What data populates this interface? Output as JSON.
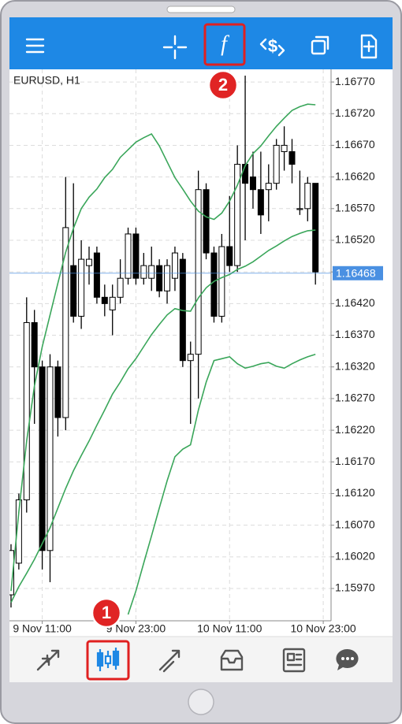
{
  "chart_data": {
    "type": "candlestick",
    "title": "EURUSD, H1",
    "open": [
      1.1596,
      1.1601,
      1.1611,
      1.1639,
      1.1632,
      1.1603,
      1.1632,
      1.1624,
      1.1648,
      1.164,
      1.1648,
      1.165,
      1.1643,
      1.1641,
      1.1643,
      1.1646,
      1.1653,
      1.1646,
      1.1646,
      1.1648,
      1.1644,
      1.1646,
      1.1649,
      1.1633,
      1.1634,
      1.166,
      1.165,
      1.164,
      1.1651,
      1.1648,
      1.1664,
      1.1662,
      1.166,
      1.166,
      1.1661,
      1.1666,
      1.1666,
      1.1657,
      1.1657,
      1.1661
    ],
    "high": [
      1.1604,
      1.1612,
      1.1643,
      1.1641,
      1.1633,
      1.1634,
      1.1633,
      1.1662,
      1.1661,
      1.1652,
      1.1651,
      1.1651,
      1.1645,
      1.1645,
      1.1649,
      1.1654,
      1.1654,
      1.165,
      1.1651,
      1.1649,
      1.1649,
      1.1651,
      1.165,
      1.1636,
      1.1663,
      1.1661,
      1.1651,
      1.1653,
      1.1659,
      1.1667,
      1.1678,
      1.1666,
      1.1666,
      1.1664,
      1.1668,
      1.167,
      1.1668,
      1.1663,
      1.1662,
      1.1661
    ],
    "low": [
      1.1594,
      1.16,
      1.1609,
      1.1623,
      1.16,
      1.1598,
      1.1621,
      1.1622,
      1.1639,
      1.1638,
      1.1645,
      1.1642,
      1.164,
      1.1637,
      1.1642,
      1.1645,
      1.1645,
      1.1645,
      1.1644,
      1.1643,
      1.1642,
      1.1644,
      1.1632,
      1.1623,
      1.1627,
      1.1649,
      1.1639,
      1.1639,
      1.1647,
      1.1647,
      1.1652,
      1.1657,
      1.1653,
      1.1655,
      1.166,
      1.1663,
      1.1661,
      1.1656,
      1.1655,
      1.1645
    ],
    "close": [
      1.1603,
      1.1611,
      1.1639,
      1.1632,
      1.1603,
      1.1632,
      1.1624,
      1.1654,
      1.164,
      1.1649,
      1.1649,
      1.1643,
      1.1642,
      1.1643,
      1.1646,
      1.1653,
      1.1646,
      1.1648,
      1.1648,
      1.1644,
      1.1648,
      1.165,
      1.1633,
      1.1634,
      1.166,
      1.165,
      1.164,
      1.1651,
      1.1648,
      1.1664,
      1.1661,
      1.166,
      1.1656,
      1.1661,
      1.1667,
      1.1667,
      1.1664,
      1.1657,
      1.1661,
      1.1647
    ],
    "up_color": "#ffffff",
    "down_color": "#000000",
    "bands": {
      "color": "#3aa65a",
      "upper": [
        1.15966,
        1.16091,
        1.16203,
        1.1629,
        1.16352,
        1.16402,
        1.16452,
        1.16501,
        1.16539,
        1.1657,
        1.16588,
        1.16601,
        1.16619,
        1.16632,
        1.16651,
        1.16663,
        1.16675,
        1.16682,
        1.16688,
        1.16669,
        1.16644,
        1.16619,
        1.16601,
        1.16582,
        1.16566,
        1.16557,
        1.16553,
        1.16563,
        1.16582,
        1.16607,
        1.16638,
        1.16657,
        1.16669,
        1.16685,
        1.167,
        1.16713,
        1.16725,
        1.16731,
        1.16735,
        1.16734
      ],
      "middle": [
        1.15948,
        1.15973,
        1.15994,
        1.16016,
        1.16041,
        1.16066,
        1.16097,
        1.16128,
        1.16156,
        1.1618,
        1.16203,
        1.16228,
        1.16252,
        1.16277,
        1.16296,
        1.16317,
        1.16333,
        1.16352,
        1.16371,
        1.16387,
        1.16402,
        1.16412,
        1.16409,
        1.16408,
        1.16429,
        1.16445,
        1.16455,
        1.16461,
        1.16466,
        1.16474,
        1.16479,
        1.16486,
        1.16495,
        1.16504,
        1.16511,
        1.16519,
        1.16526,
        1.16531,
        1.16535,
        1.16536
      ],
      "lower": [
        null,
        null,
        null,
        null,
        null,
        null,
        null,
        null,
        null,
        null,
        null,
        null,
        null,
        null,
        null,
        1.15929,
        1.15966,
        1.1601,
        1.16053,
        1.16097,
        1.1614,
        1.16178,
        1.1619,
        1.16197,
        1.16252,
        1.16296,
        1.1633,
        1.16333,
        1.16336,
        1.16325,
        1.16318,
        1.16321,
        1.16325,
        1.16327,
        1.16321,
        1.16318,
        1.16325,
        1.16331,
        1.16336,
        1.1634
      ]
    },
    "last_price": 1.16468,
    "last_price_color": "#4a90e2",
    "xlim": [
      -0.2,
      41
    ],
    "xticks": [
      {
        "value": 4,
        "label": "9 Nov 11:00"
      },
      {
        "value": 16,
        "label": "9 Nov 23:00"
      },
      {
        "value": 28,
        "label": "10 Nov 11:00"
      },
      {
        "value": 40,
        "label": "10 Nov 23:00"
      }
    ],
    "ylim": [
      1.15919,
      1.1679
    ],
    "yticks": [
      {
        "value": 1.1677,
        "label": "1.16770"
      },
      {
        "value": 1.1672,
        "label": "1.16720"
      },
      {
        "value": 1.1667,
        "label": "1.16670"
      },
      {
        "value": 1.1662,
        "label": "1.16620"
      },
      {
        "value": 1.1657,
        "label": "1.16570"
      },
      {
        "value": 1.1652,
        "label": "1.16520"
      },
      {
        "value": 1.1647,
        "label": "1.16470"
      },
      {
        "value": 1.1642,
        "label": "1.16420"
      },
      {
        "value": 1.1637,
        "label": "1.16370"
      },
      {
        "value": 1.1632,
        "label": "1.16320"
      },
      {
        "value": 1.1627,
        "label": "1.16270"
      },
      {
        "value": 1.1622,
        "label": "1.16220"
      },
      {
        "value": 1.1617,
        "label": "1.16170"
      },
      {
        "value": 1.1612,
        "label": "1.16120"
      },
      {
        "value": 1.1607,
        "label": "1.16070"
      },
      {
        "value": 1.1602,
        "label": "1.16020"
      },
      {
        "value": 1.1597,
        "label": "1.15970"
      }
    ],
    "grid": true
  },
  "annotations": [
    "1",
    "2"
  ]
}
